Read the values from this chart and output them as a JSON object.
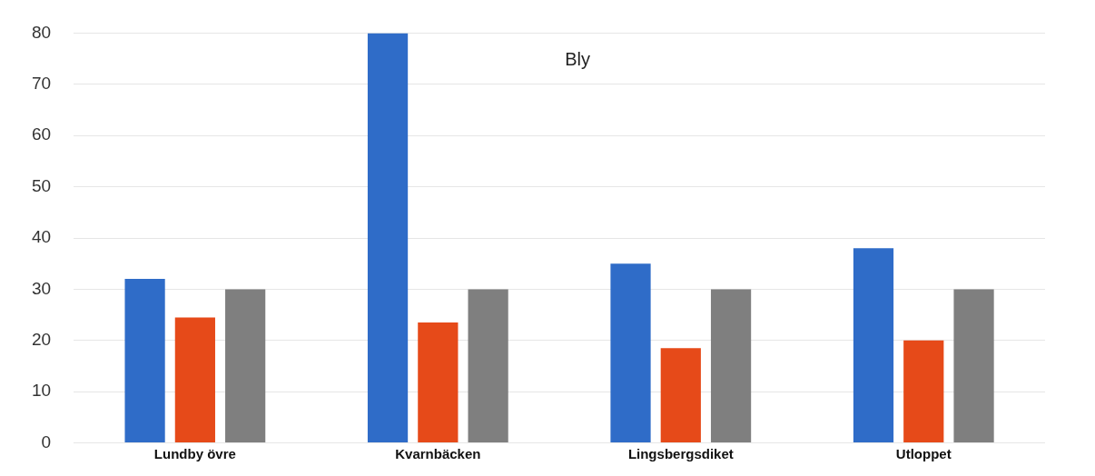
{
  "chart_data": {
    "type": "bar",
    "title": "Bly",
    "categories": [
      "Lundby övre",
      "Kvarnbäcken",
      "Lingsbergsdiket",
      "Utloppet"
    ],
    "series": [
      {
        "color": "#2f6cc8",
        "values": [
          32,
          80,
          35,
          38
        ]
      },
      {
        "color": "#e64a19",
        "values": [
          24.5,
          23.5,
          18.5,
          20
        ]
      },
      {
        "color": "#7f7f7f",
        "values": [
          30,
          30,
          30,
          30
        ]
      }
    ],
    "ylim": [
      0,
      80
    ],
    "yticks": [
      0,
      10,
      20,
      30,
      40,
      50,
      60,
      70,
      80
    ],
    "grid": "y",
    "legend": false
  }
}
